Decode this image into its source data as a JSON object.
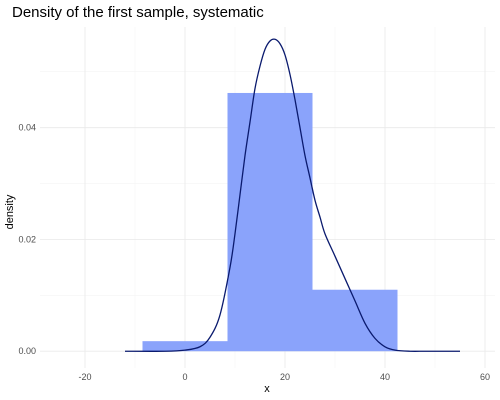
{
  "chart_data": {
    "type": "bar",
    "title": "Density of the first sample, systematic",
    "xlabel": "x",
    "ylabel": "density",
    "xlim": [
      -29,
      62
    ],
    "ylim": [
      -0.003,
      0.058
    ],
    "grid": true,
    "x_ticks": [
      -20,
      0,
      20,
      40,
      60
    ],
    "x_tick_labels": [
      "-20",
      "0",
      "20",
      "40",
      "60"
    ],
    "y_ticks": [
      0.0,
      0.02,
      0.04
    ],
    "y_tick_labels": [
      "0.00",
      "0.02",
      "0.04"
    ],
    "histogram": {
      "bins": [
        {
          "x0": -8.5,
          "x1": 8.5,
          "density": 0.0018
        },
        {
          "x0": 8.5,
          "x1": 25.5,
          "density": 0.0462
        },
        {
          "x0": 25.5,
          "x1": 42.5,
          "density": 0.011
        }
      ],
      "color": "#8aa3fb"
    },
    "density_curve": {
      "color": "#0a1a6e",
      "x": [
        -12,
        -4,
        0,
        3,
        5,
        7,
        9,
        10,
        11,
        12,
        13,
        14,
        15,
        16,
        17,
        18,
        19,
        20,
        21,
        22,
        23,
        24,
        25,
        26,
        27,
        28,
        30,
        32,
        34,
        36,
        38,
        40,
        42,
        45,
        48,
        52,
        55
      ],
      "y": [
        0.0,
        0.0,
        0.0002,
        0.0008,
        0.0025,
        0.0065,
        0.015,
        0.021,
        0.028,
        0.035,
        0.041,
        0.047,
        0.051,
        0.054,
        0.0555,
        0.0558,
        0.055,
        0.053,
        0.0495,
        0.045,
        0.04,
        0.035,
        0.031,
        0.027,
        0.024,
        0.021,
        0.017,
        0.013,
        0.009,
        0.005,
        0.0023,
        0.0008,
        0.0002,
        0.0,
        0.0,
        0.0,
        0.0
      ]
    }
  }
}
